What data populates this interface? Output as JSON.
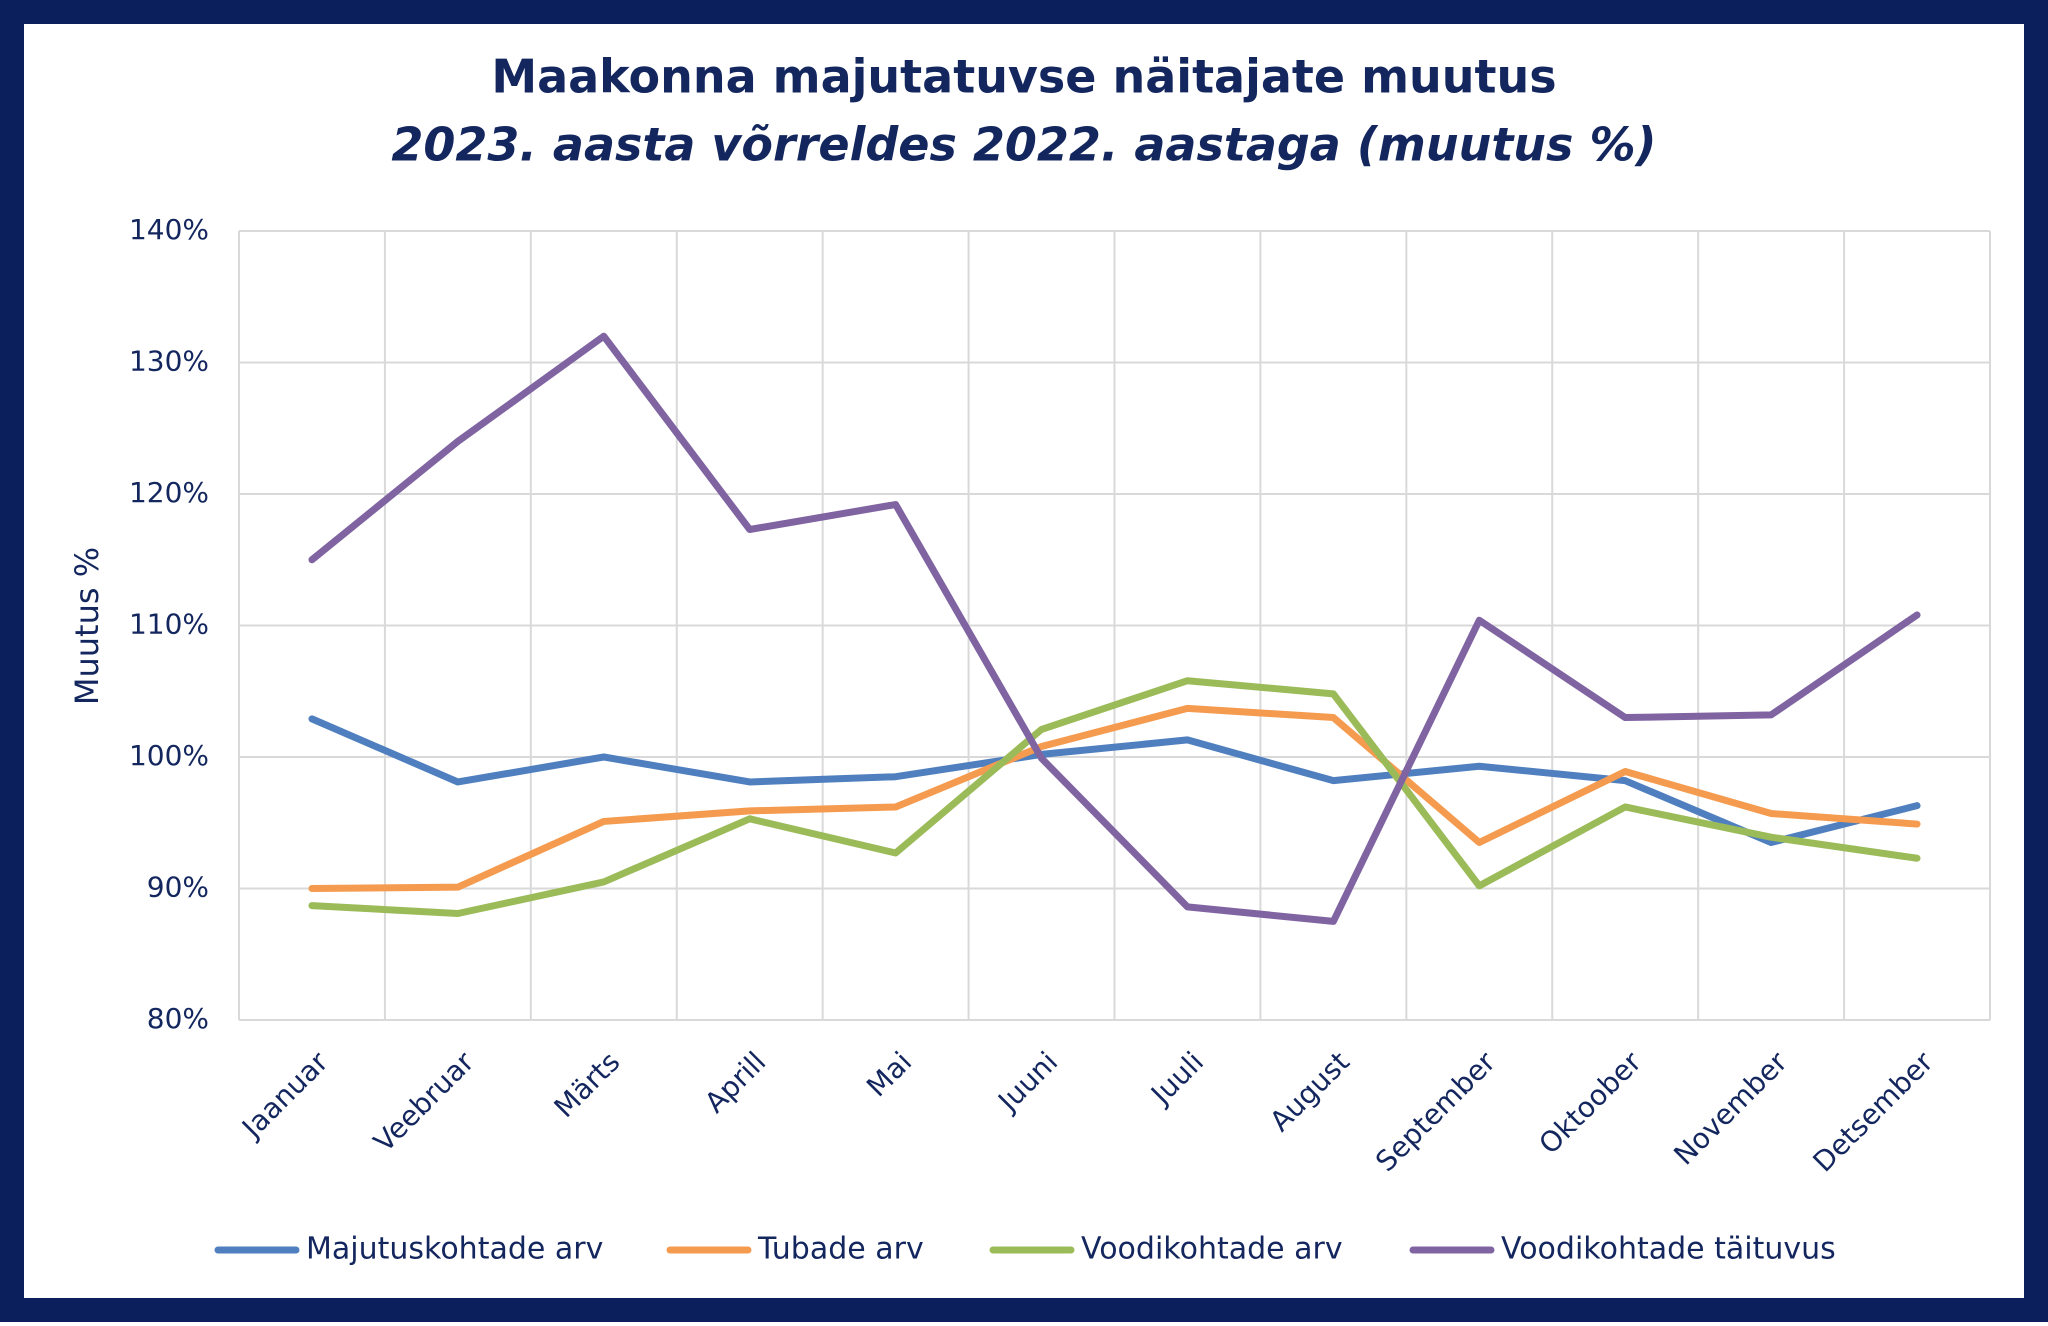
{
  "chart_data": {
    "type": "line",
    "title": "Maakonna majutatuvse näitajate muutus",
    "subtitle": "2023. aasta võrreldes 2022. aastaga (muutus %)",
    "y_label": "Muutus %",
    "categories": [
      "Jaanuar",
      "Veebruar",
      "Märts",
      "Aprill",
      "Mai",
      "Juuni",
      "Juuli",
      "August",
      "September",
      "Oktoober",
      "November",
      "Detsember"
    ],
    "series": [
      {
        "name": "Majutuskohtade arv",
        "color": "#4f7fbe",
        "values": [
          102.9,
          98.1,
          100,
          98.1,
          98.5,
          100.2,
          101.3,
          98.2,
          99.3,
          98.2,
          93.5,
          96.3
        ]
      },
      {
        "name": "Tubade arv",
        "color": "#f59b4f",
        "values": [
          90,
          90.1,
          95.1,
          95.9,
          96.2,
          100.8,
          103.7,
          103,
          93.5,
          98.9,
          95.7,
          94.9
        ]
      },
      {
        "name": "Voodikohtade arv",
        "color": "#9bbb59",
        "values": [
          88.7,
          88.1,
          90.5,
          95.3,
          92.7,
          102.1,
          105.8,
          104.8,
          90.2,
          96.2,
          93.9,
          92.3
        ]
      },
      {
        "name": "Voodikohtade täituvus",
        "color": "#8064a2",
        "values": [
          115,
          124,
          132,
          117.3,
          119.2,
          99.9,
          88.6,
          87.5,
          110.4,
          103,
          103.2,
          110.8
        ]
      }
    ],
    "ylim": [
      80,
      140
    ],
    "yticks": [
      {
        "value": 80,
        "label": "80%"
      },
      {
        "value": 90,
        "label": "90%"
      },
      {
        "value": 100,
        "label": "100%"
      },
      {
        "value": 110,
        "label": "110%"
      },
      {
        "value": 120,
        "label": "120%"
      },
      {
        "value": 130,
        "label": "130%"
      },
      {
        "value": 140,
        "label": "140%"
      }
    ],
    "grid": true,
    "legend": "bottom"
  }
}
